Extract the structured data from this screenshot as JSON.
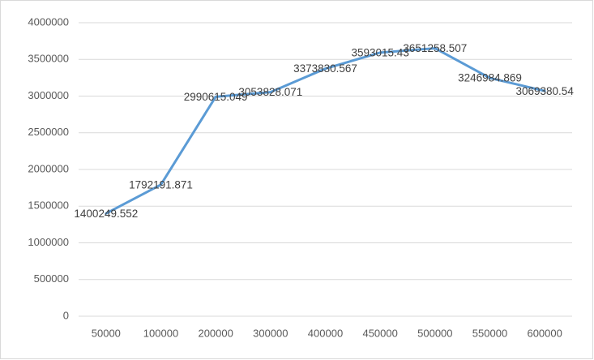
{
  "chart_data": {
    "type": "line",
    "categories": [
      "50000",
      "100000",
      "200000",
      "300000",
      "400000",
      "450000",
      "500000",
      "550000",
      "600000"
    ],
    "series": [
      {
        "color": "#5b9bd5",
        "values": [
          1400249.552,
          1792191.871,
          2990615.049,
          3053828.071,
          3373830.567,
          3593015.43,
          3651258.507,
          3246984.869,
          3069380.54
        ]
      }
    ],
    "ylim": [
      0,
      4000000
    ],
    "yticks": [
      0,
      500000,
      1000000,
      1500000,
      2000000,
      2500000,
      3000000,
      3500000,
      4000000
    ],
    "grid": true
  }
}
